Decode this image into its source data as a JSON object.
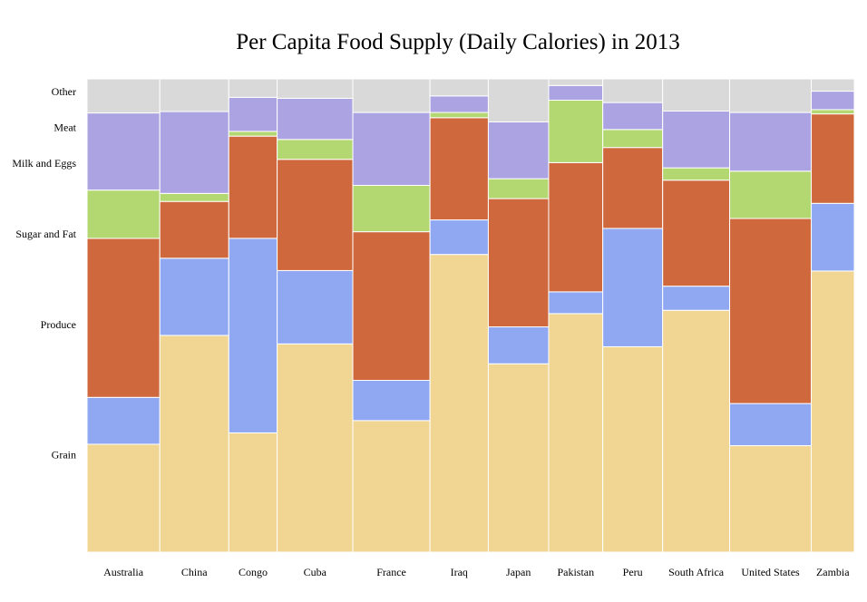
{
  "chart_data": {
    "type": "mosaic",
    "title": "Per Capita Food Supply (Daily Calories) in 2013",
    "categories": [
      "Grain",
      "Produce",
      "Sugar and Fat",
      "Milk and Eggs",
      "Meat",
      "Other"
    ],
    "category_labels": [
      "Other",
      "Meat",
      "Milk and Eggs",
      "Sugar and Fat",
      "Produce",
      "Grain"
    ],
    "colors": {
      "Grain": "#f1d592",
      "Produce": "#8fa8f1",
      "Sugar and Fat": "#cf693d",
      "Milk and Eggs": "#b3d771",
      "Meat": "#aca4e2",
      "Other": "#d9d9d9"
    },
    "countries": [
      {
        "name": "Australia",
        "total": 3280,
        "shares": [
          0.228,
          0.099,
          0.336,
          0.102,
          0.163,
          0.072
        ]
      },
      {
        "name": "China",
        "total": 3110,
        "shares": [
          0.458,
          0.163,
          0.12,
          0.017,
          0.173,
          0.069
        ]
      },
      {
        "name": "Congo",
        "total": 2180,
        "shares": [
          0.252,
          0.411,
          0.216,
          0.01,
          0.072,
          0.039
        ]
      },
      {
        "name": "Cuba",
        "total": 3410,
        "shares": [
          0.44,
          0.155,
          0.235,
          0.042,
          0.087,
          0.041
        ]
      },
      {
        "name": "France",
        "total": 3480,
        "shares": [
          0.278,
          0.085,
          0.314,
          0.098,
          0.154,
          0.071
        ]
      },
      {
        "name": "Iraq",
        "total": 2630,
        "shares": [
          0.629,
          0.073,
          0.216,
          0.011,
          0.035,
          0.036
        ]
      },
      {
        "name": "Japan",
        "total": 2720,
        "shares": [
          0.398,
          0.078,
          0.271,
          0.042,
          0.12,
          0.091
        ]
      },
      {
        "name": "Pakistan",
        "total": 2440,
        "shares": [
          0.504,
          0.046,
          0.273,
          0.132,
          0.031,
          0.014
        ]
      },
      {
        "name": "Peru",
        "total": 2700,
        "shares": [
          0.434,
          0.25,
          0.171,
          0.038,
          0.057,
          0.05
        ]
      },
      {
        "name": "South Africa",
        "total": 3020,
        "shares": [
          0.511,
          0.051,
          0.224,
          0.026,
          0.12,
          0.068
        ]
      },
      {
        "name": "United States",
        "total": 3680,
        "shares": [
          0.225,
          0.089,
          0.391,
          0.1,
          0.124,
          0.071
        ]
      },
      {
        "name": "Zambia",
        "total": 1940,
        "shares": [
          0.594,
          0.143,
          0.189,
          0.009,
          0.039,
          0.026
        ]
      }
    ]
  }
}
